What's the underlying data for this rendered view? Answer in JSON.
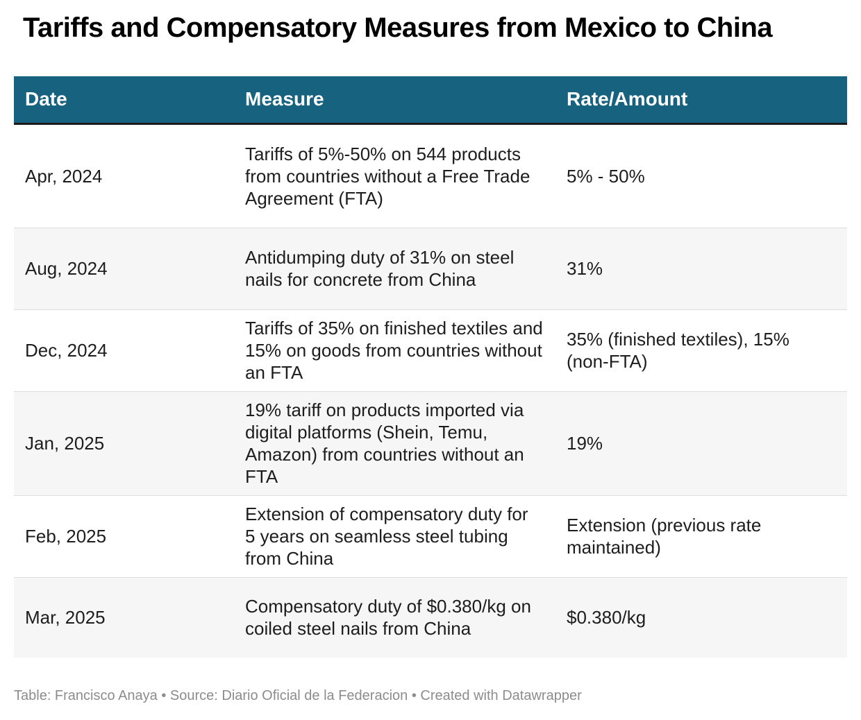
{
  "title": "Tariffs and Compensatory Measures from Mexico to China",
  "colors": {
    "header_bg": "#17627f",
    "header_text": "#ffffff",
    "stripe": "#f6f6f6"
  },
  "chart_data": {
    "type": "table",
    "title": "Tariffs and Compensatory Measures from Mexico to China",
    "columns": [
      "Date",
      "Measure",
      "Rate/Amount"
    ],
    "rows": [
      [
        "Apr, 2024",
        "Tariffs of 5%-50% on 544 products from countries without a Free Trade Agreement (FTA)",
        "5% - 50%"
      ],
      [
        "Aug, 2024",
        "Antidumping duty of 31% on steel nails for concrete from China",
        "31%"
      ],
      [
        "Dec, 2024",
        "Tariffs of 35% on finished textiles and 15% on goods from countries without an FTA",
        "35% (finished textiles), 15% (non-FTA)"
      ],
      [
        "Jan, 2025",
        "19% tariff on products imported via digital platforms (Shein, Temu, Amazon) from countries without an FTA",
        "19%"
      ],
      [
        "Feb, 2025",
        "Extension of compensatory duty for 5 years on seamless steel tubing from China",
        "Extension (previous rate maintained)"
      ],
      [
        "Mar, 2025",
        "Compensatory duty of $0.380/kg on coiled steel nails from China",
        "$0.380/kg"
      ]
    ]
  },
  "footer": "Table: Francisco Anaya • Source: Diario Oficial de la Federacion • Created with Datawrapper"
}
